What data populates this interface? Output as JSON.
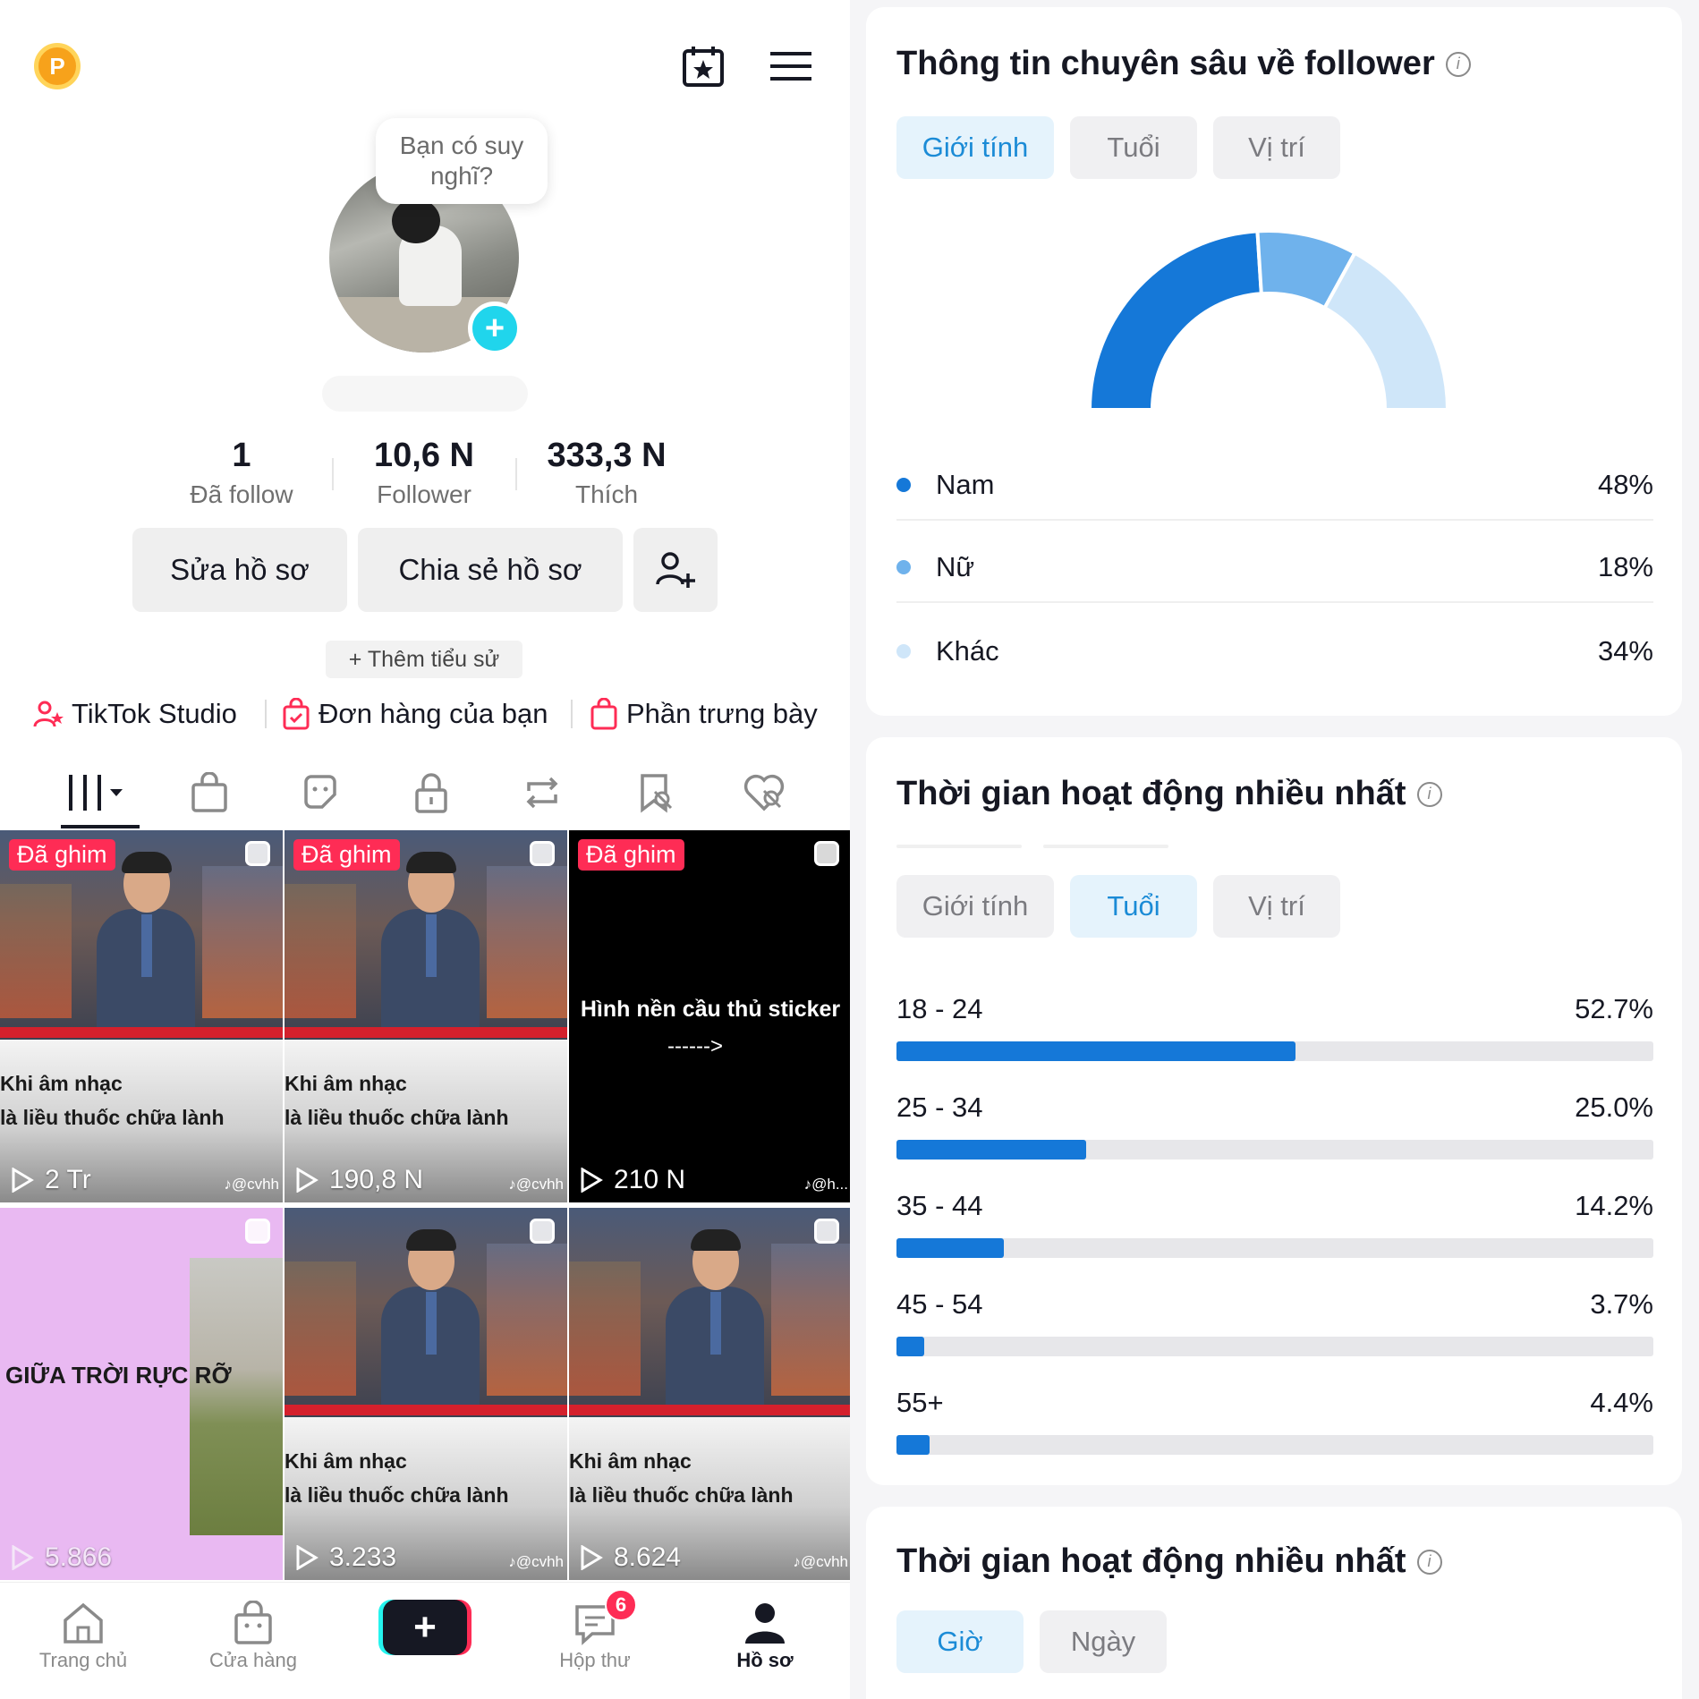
{
  "profile": {
    "bubble_text": "Bạn có suy nghĩ?",
    "stats": [
      {
        "num": "1",
        "label": "Đã follow"
      },
      {
        "num": "10,6 N",
        "label": "Follower"
      },
      {
        "num": "333,3 N",
        "label": "Thích"
      }
    ],
    "edit_label": "Sửa hồ sơ",
    "share_label": "Chia sẻ hồ sơ",
    "add_bio_label": "+ Thêm tiểu sử",
    "links": {
      "studio": "TikTok Studio",
      "orders": "Đơn hàng của bạn",
      "showcase": "Phần trưng bày"
    }
  },
  "videos": [
    {
      "pinned": "Đã ghim",
      "cap1": "Khi âm nhạc",
      "cap2": "là liều thuốc chữa lành",
      "views": "2 Tr",
      "handle": "♪@cvhh"
    },
    {
      "pinned": "Đã ghim",
      "cap1": "Khi âm nhạc",
      "cap2": "là liều thuốc chữa lành",
      "views": "190,8 N",
      "handle": "♪@cvhh"
    },
    {
      "pinned": "Đã ghim",
      "title": "Hình nền cầu thủ sticker",
      "arrow": "------>",
      "views": "210 N",
      "handle": "♪@h..."
    },
    {
      "text": "GIỮA TRỜI RỰC RỠ",
      "views": "5.866"
    },
    {
      "cap1": "Khi âm nhạc",
      "cap2": "là liều thuốc chữa lành",
      "views": "3.233",
      "handle": "♪@cvhh"
    },
    {
      "cap1": "Khi âm nhạc",
      "cap2": "là liều thuốc chữa lành",
      "views": "8.624",
      "handle": "♪@cvhh"
    }
  ],
  "nav": {
    "home": "Trang chủ",
    "shop": "Cửa hàng",
    "create": "+",
    "inbox": "Hộp thư",
    "inbox_badge": "6",
    "profile": "Hồ sơ"
  },
  "insights": {
    "title": "Thông tin chuyên sâu về follower",
    "tabs": [
      "Giới tính",
      "Tuổi",
      "Vị trí"
    ],
    "active_tab": "Giới tính",
    "gender": [
      {
        "label": "Nam",
        "pct": "48%",
        "value": 48,
        "color": "#1578d8"
      },
      {
        "label": "Nữ",
        "pct": "18%",
        "value": 18,
        "color": "#6fb2ec"
      },
      {
        "label": "Khác",
        "pct": "34%",
        "value": 34,
        "color": "#cfe6f9"
      }
    ]
  },
  "activity": {
    "title": "Thời gian hoạt động nhiều nhất",
    "tabs": [
      "Giới tính",
      "Tuổi",
      "Vị trí"
    ],
    "active_tab": "Tuổi",
    "ages": [
      {
        "label": "18 - 24",
        "pct": "52.7%",
        "value": 52.7
      },
      {
        "label": "25 - 34",
        "pct": "25.0%",
        "value": 25.0
      },
      {
        "label": "35 - 44",
        "pct": "14.2%",
        "value": 14.2
      },
      {
        "label": "45 - 54",
        "pct": "3.7%",
        "value": 3.7
      },
      {
        "label": "55+",
        "pct": "4.4%",
        "value": 4.4
      }
    ]
  },
  "activity2": {
    "title": "Thời gian hoạt động nhiều nhất",
    "tabs": [
      "Giờ",
      "Ngày"
    ],
    "active_tab": "Giờ"
  },
  "colors": {
    "accent": "#fe2c55",
    "cyan": "#20d5ec",
    "chart_blue": "#1578d8",
    "tab_active": "#1b8bd6"
  }
}
